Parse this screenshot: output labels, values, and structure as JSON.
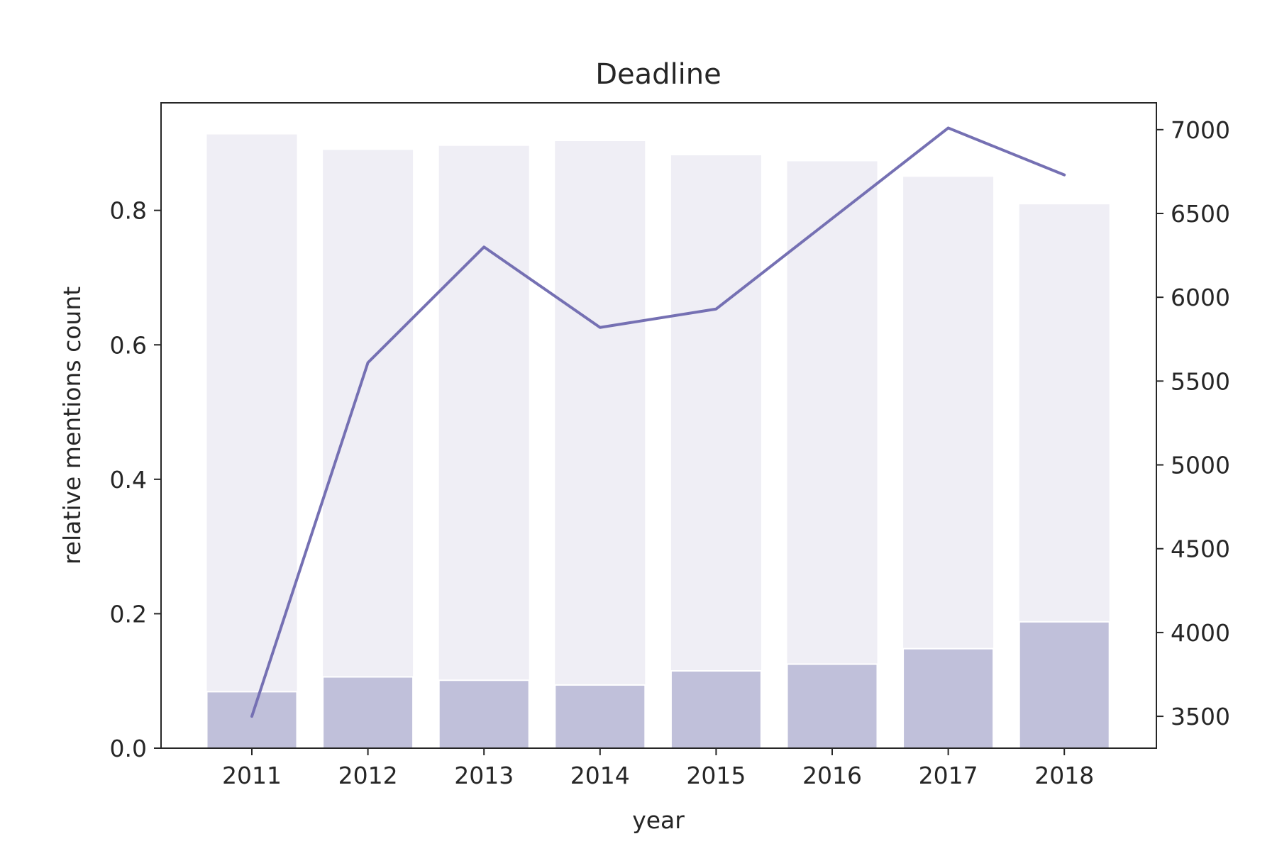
{
  "chart_data": {
    "type": "bar",
    "title": "Deadline",
    "xlabel": "year",
    "ylabel": "relative mentions count",
    "categories": [
      "2011",
      "2012",
      "2013",
      "2014",
      "2015",
      "2016",
      "2017",
      "2018"
    ],
    "ylim": [
      0,
      0.96
    ],
    "yticks": [
      "0.0",
      "0.2",
      "0.4",
      "0.6",
      "0.8"
    ],
    "bars_total": [
      0.913,
      0.89,
      0.896,
      0.903,
      0.882,
      0.873,
      0.85,
      0.809
    ],
    "bars_part": [
      0.084,
      0.106,
      0.101,
      0.094,
      0.115,
      0.125,
      0.148,
      0.188
    ],
    "y2lim": [
      3310,
      7160
    ],
    "y2ticks": [
      "3500",
      "4000",
      "4500",
      "5000",
      "5500",
      "6000",
      "6500",
      "7000"
    ],
    "line": [
      3500,
      5610,
      6300,
      5820,
      5930,
      null,
      7010,
      6730
    ],
    "line_full": [
      3500,
      5610,
      6300,
      5820,
      5930,
      6470,
      7010,
      6730
    ],
    "grid": false,
    "colors": {
      "total": "#efeef5",
      "part": "#c0c0da",
      "line": "#7570b3",
      "axis": "#262626"
    }
  }
}
